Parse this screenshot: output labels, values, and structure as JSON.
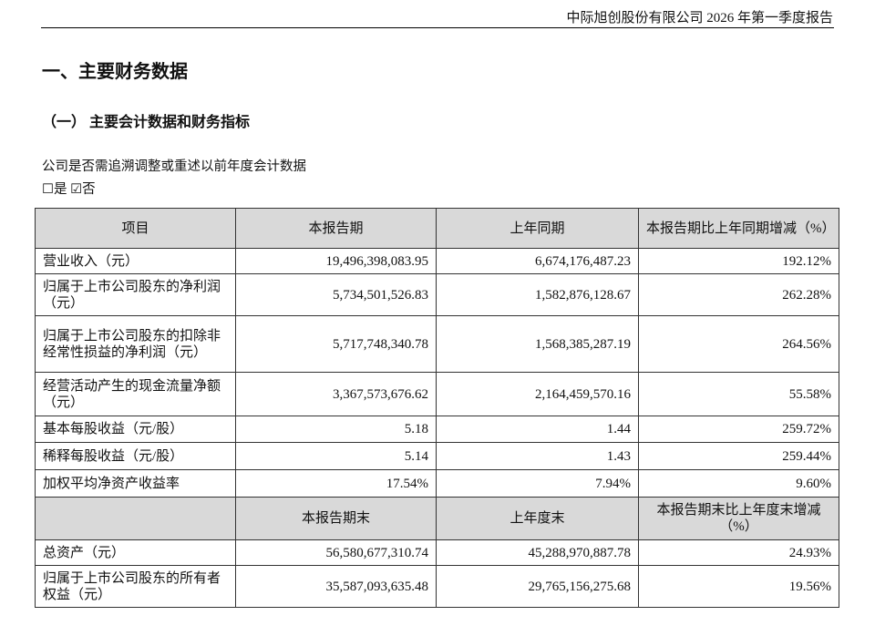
{
  "header": {
    "title": "中际旭创股份有限公司 2026 年第一季度报告"
  },
  "section_title": "一、主要财务数据",
  "subsection_title": "（一） 主要会计数据和财务指标",
  "question": "公司是否需追溯调整或重述以前年度会计数据",
  "options": {
    "yes": "是",
    "no": "否"
  },
  "table": {
    "header": [
      "项目",
      "本报告期",
      "上年同期",
      "本报告期比上年同期增减（%）"
    ],
    "rows": [
      [
        "营业收入（元）",
        "19,496,398,083.95",
        "6,674,176,487.23",
        "192.12%"
      ],
      [
        "归属于上市公司股东的净利润（元）",
        "5,734,501,526.83",
        "1,582,876,128.67",
        "262.28%"
      ],
      [
        "归属于上市公司股东的扣除非经常性损益的净利润（元）",
        "5,717,748,340.78",
        "1,568,385,287.19",
        "264.56%"
      ],
      [
        "经营活动产生的现金流量净额（元）",
        "3,367,573,676.62",
        "2,164,459,570.16",
        "55.58%"
      ],
      [
        "基本每股收益（元/股）",
        "5.18",
        "1.44",
        "259.72%"
      ],
      [
        "稀释每股收益（元/股）",
        "5.14",
        "1.43",
        "259.44%"
      ],
      [
        "加权平均净资产收益率",
        "17.54%",
        "7.94%",
        "9.60%"
      ]
    ],
    "header2": [
      "本报告期末",
      "上年度末",
      "本报告期末比上年度末增减（%）"
    ],
    "rows2": [
      [
        "总资产（元）",
        "56,580,677,310.74",
        "45,288,970,887.78",
        "24.93%"
      ],
      [
        "归属于上市公司股东的所有者权益（元）",
        "35,587,093,635.48",
        "29,765,156,275.68",
        "19.56%"
      ]
    ]
  }
}
